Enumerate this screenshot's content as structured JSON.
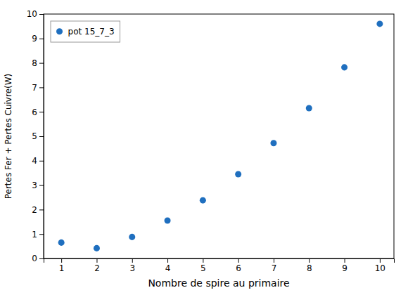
{
  "chart_data": {
    "type": "scatter",
    "xlabel": "Nombre de spire au primaire",
    "ylabel": "Pertes Fer + Pertes Cuivre(W)",
    "x": [
      1,
      2,
      3,
      4,
      5,
      6,
      7,
      8,
      9,
      10
    ],
    "series": [
      {
        "name": "pot 15_7_3",
        "color": "#1f6fbf",
        "marker": "circle",
        "values": [
          0.65,
          0.42,
          0.88,
          1.55,
          2.38,
          3.45,
          4.72,
          6.15,
          7.82,
          9.6
        ]
      }
    ],
    "xlim": [
      0.5,
      10.4
    ],
    "ylim": [
      0,
      10
    ],
    "xticks": [
      1,
      2,
      3,
      4,
      5,
      6,
      7,
      8,
      9,
      10
    ],
    "yticks": [
      0,
      1,
      2,
      3,
      4,
      5,
      6,
      7,
      8,
      9,
      10
    ],
    "grid": false,
    "legend": "upper left"
  }
}
